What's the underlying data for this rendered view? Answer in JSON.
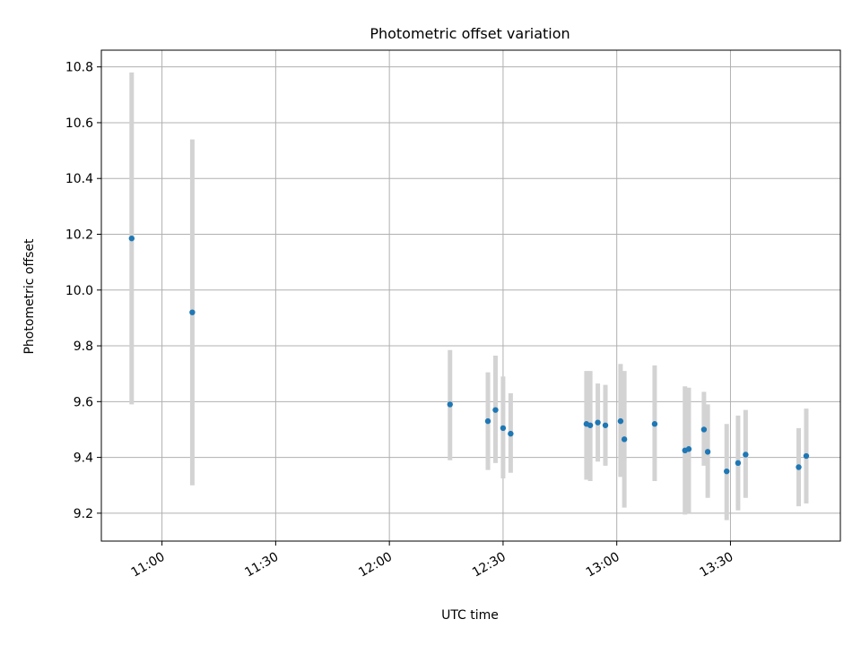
{
  "chart_data": {
    "type": "scatter",
    "title": "Photometric offset variation",
    "xlabel": "UTC time",
    "ylabel": "Photometric offset",
    "xlim": [
      "10:44",
      "13:59"
    ],
    "ylim": [
      9.1,
      10.86
    ],
    "xticks": [
      "11:00",
      "11:30",
      "12:00",
      "12:30",
      "13:00",
      "13:30"
    ],
    "yticks": [
      "9.2",
      "9.4",
      "9.6",
      "9.8",
      "10.0",
      "10.2",
      "10.4",
      "10.6",
      "10.8"
    ],
    "grid": true,
    "colors": {
      "point": "#1f77b4",
      "errorbar": "#d3d3d3",
      "grid": "#b0b0b0"
    },
    "points": [
      {
        "x": "10:52",
        "y": 10.185,
        "ylow": 9.59,
        "yhigh": 10.78
      },
      {
        "x": "11:08",
        "y": 9.92,
        "ylow": 9.3,
        "yhigh": 10.54
      },
      {
        "x": "12:16",
        "y": 9.59,
        "ylow": 9.39,
        "yhigh": 9.785
      },
      {
        "x": "12:26",
        "y": 9.53,
        "ylow": 9.355,
        "yhigh": 9.705
      },
      {
        "x": "12:28",
        "y": 9.57,
        "ylow": 9.38,
        "yhigh": 9.765
      },
      {
        "x": "12:30",
        "y": 9.505,
        "ylow": 9.325,
        "yhigh": 9.69
      },
      {
        "x": "12:32",
        "y": 9.485,
        "ylow": 9.345,
        "yhigh": 9.63
      },
      {
        "x": "12:52",
        "y": 9.52,
        "ylow": 9.32,
        "yhigh": 9.71
      },
      {
        "x": "12:53",
        "y": 9.515,
        "ylow": 9.315,
        "yhigh": 9.71
      },
      {
        "x": "12:55",
        "y": 9.525,
        "ylow": 9.385,
        "yhigh": 9.665
      },
      {
        "x": "12:57",
        "y": 9.515,
        "ylow": 9.37,
        "yhigh": 9.66
      },
      {
        "x": "13:01",
        "y": 9.53,
        "ylow": 9.33,
        "yhigh": 9.735
      },
      {
        "x": "13:02",
        "y": 9.465,
        "ylow": 9.22,
        "yhigh": 9.71
      },
      {
        "x": "13:10",
        "y": 9.52,
        "ylow": 9.315,
        "yhigh": 9.73
      },
      {
        "x": "13:18",
        "y": 9.425,
        "ylow": 9.195,
        "yhigh": 9.655
      },
      {
        "x": "13:19",
        "y": 9.43,
        "ylow": 9.2,
        "yhigh": 9.65
      },
      {
        "x": "13:23",
        "y": 9.5,
        "ylow": 9.37,
        "yhigh": 9.635
      },
      {
        "x": "13:24",
        "y": 9.42,
        "ylow": 9.255,
        "yhigh": 9.59
      },
      {
        "x": "13:29",
        "y": 9.35,
        "ylow": 9.175,
        "yhigh": 9.52
      },
      {
        "x": "13:32",
        "y": 9.38,
        "ylow": 9.21,
        "yhigh": 9.55
      },
      {
        "x": "13:34",
        "y": 9.41,
        "ylow": 9.255,
        "yhigh": 9.57
      },
      {
        "x": "13:48",
        "y": 9.365,
        "ylow": 9.225,
        "yhigh": 9.505
      },
      {
        "x": "13:50",
        "y": 9.405,
        "ylow": 9.235,
        "yhigh": 9.575
      }
    ]
  }
}
